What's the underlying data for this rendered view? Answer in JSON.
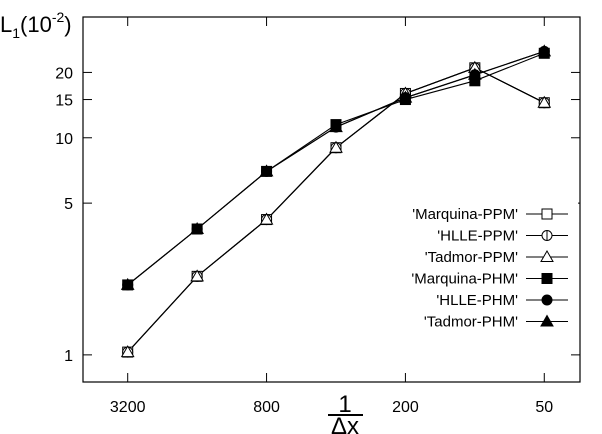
{
  "chart_data": {
    "type": "line",
    "ylabel_base": "L",
    "ylabel_sub": "1",
    "ylabel_paren_open": "(10",
    "ylabel_exp": "-2",
    "ylabel_paren_close": ")",
    "xlabel_num": "1",
    "xlabel_den": "Δx",
    "x_scale": "log-reversed",
    "y_scale": "log",
    "xlim": [
      5000,
      35
    ],
    "ylim": [
      0.75,
      36
    ],
    "x_ticks": [
      {
        "value": 3200,
        "label": "3200"
      },
      {
        "value": 800,
        "label": "800"
      },
      {
        "value": 200,
        "label": "200"
      },
      {
        "value": 50,
        "label": "50"
      }
    ],
    "y_ticks": [
      {
        "value": 1,
        "label": "1"
      },
      {
        "value": 5,
        "label": "5"
      },
      {
        "value": 10,
        "label": "10"
      },
      {
        "value": 15,
        "label": "15"
      },
      {
        "value": 20,
        "label": "20"
      }
    ],
    "x": [
      3200,
      1600,
      800,
      400,
      200,
      100,
      50
    ],
    "legend_position": "right",
    "series": [
      {
        "name": "'Marquina-PPM'",
        "marker": "square-open",
        "values": [
          1.03,
          2.3,
          4.2,
          9.0,
          16.0,
          21.0,
          14.5
        ]
      },
      {
        "name": "'HLLE-PPM'",
        "marker": "circle-open",
        "values": [
          1.03,
          2.3,
          4.2,
          9.0,
          16.0,
          21.0,
          14.5
        ]
      },
      {
        "name": "'Tadmor-PPM'",
        "marker": "triangle-open",
        "values": [
          1.03,
          2.3,
          4.2,
          9.0,
          16.0,
          21.0,
          14.5
        ]
      },
      {
        "name": "'Marquina-PHM'",
        "marker": "square-filled",
        "values": [
          2.1,
          3.8,
          7.0,
          11.5,
          15.0,
          18.3,
          24.5
        ]
      },
      {
        "name": "'HLLE-PHM'",
        "marker": "circle-filled",
        "values": [
          2.1,
          3.8,
          7.0,
          11.2,
          15.3,
          19.5,
          25.0
        ]
      },
      {
        "name": "'Tadmor-PHM'",
        "marker": "triangle-filled",
        "values": [
          2.1,
          3.8,
          7.0,
          11.2,
          15.3,
          19.5,
          25.0
        ]
      }
    ]
  }
}
